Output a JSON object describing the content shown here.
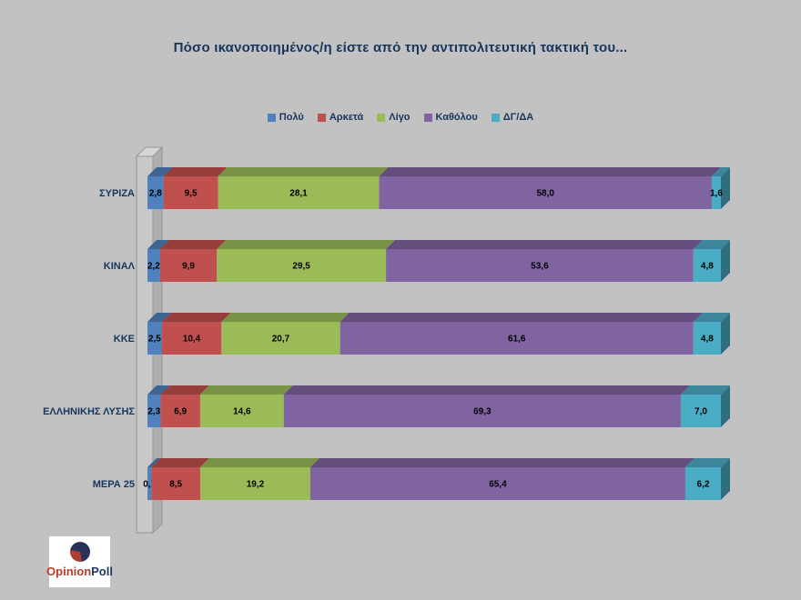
{
  "page": {
    "background": "#c2c2c2"
  },
  "title": "Πόσο ικανοποιημένος/η είστε από την αντιπολιτευτική τακτική του...",
  "logo": {
    "text_primary": "Opinion",
    "text_secondary": "Poll"
  },
  "chart_data": {
    "type": "bar",
    "orientation": "horizontal",
    "stacked": true,
    "pseudo_3d": true,
    "grid": false,
    "legend_position": "top",
    "xlim": [
      0,
      100
    ],
    "decimal_separator": ",",
    "categories": [
      "ΣΥΡΙΖΑ",
      "ΚΙΝΑΛ",
      "ΚΚΕ",
      "ΕΛΛΗΝΙΚΗΣ ΛΥΣΗΣ",
      "ΜΕΡΑ 25"
    ],
    "series": [
      {
        "name": "Πολύ",
        "color": "#4f81bd",
        "values": [
          2.8,
          2.2,
          2.5,
          2.3,
          0.7
        ]
      },
      {
        "name": "Αρκετά",
        "color": "#c0504d",
        "values": [
          9.5,
          9.9,
          10.4,
          6.9,
          8.5
        ]
      },
      {
        "name": "Λίγο",
        "color": "#9bbb59",
        "values": [
          28.1,
          29.5,
          20.7,
          14.6,
          19.2
        ]
      },
      {
        "name": "Καθόλου",
        "color": "#8064a2",
        "values": [
          58.0,
          53.6,
          61.6,
          69.3,
          65.4
        ]
      },
      {
        "name": "ΔΓ/ΔΑ",
        "color": "#4bacc6",
        "values": [
          1.6,
          4.8,
          4.8,
          7.0,
          6.2
        ]
      }
    ],
    "label_color": "#000000",
    "category_label_color": "#17365d"
  }
}
